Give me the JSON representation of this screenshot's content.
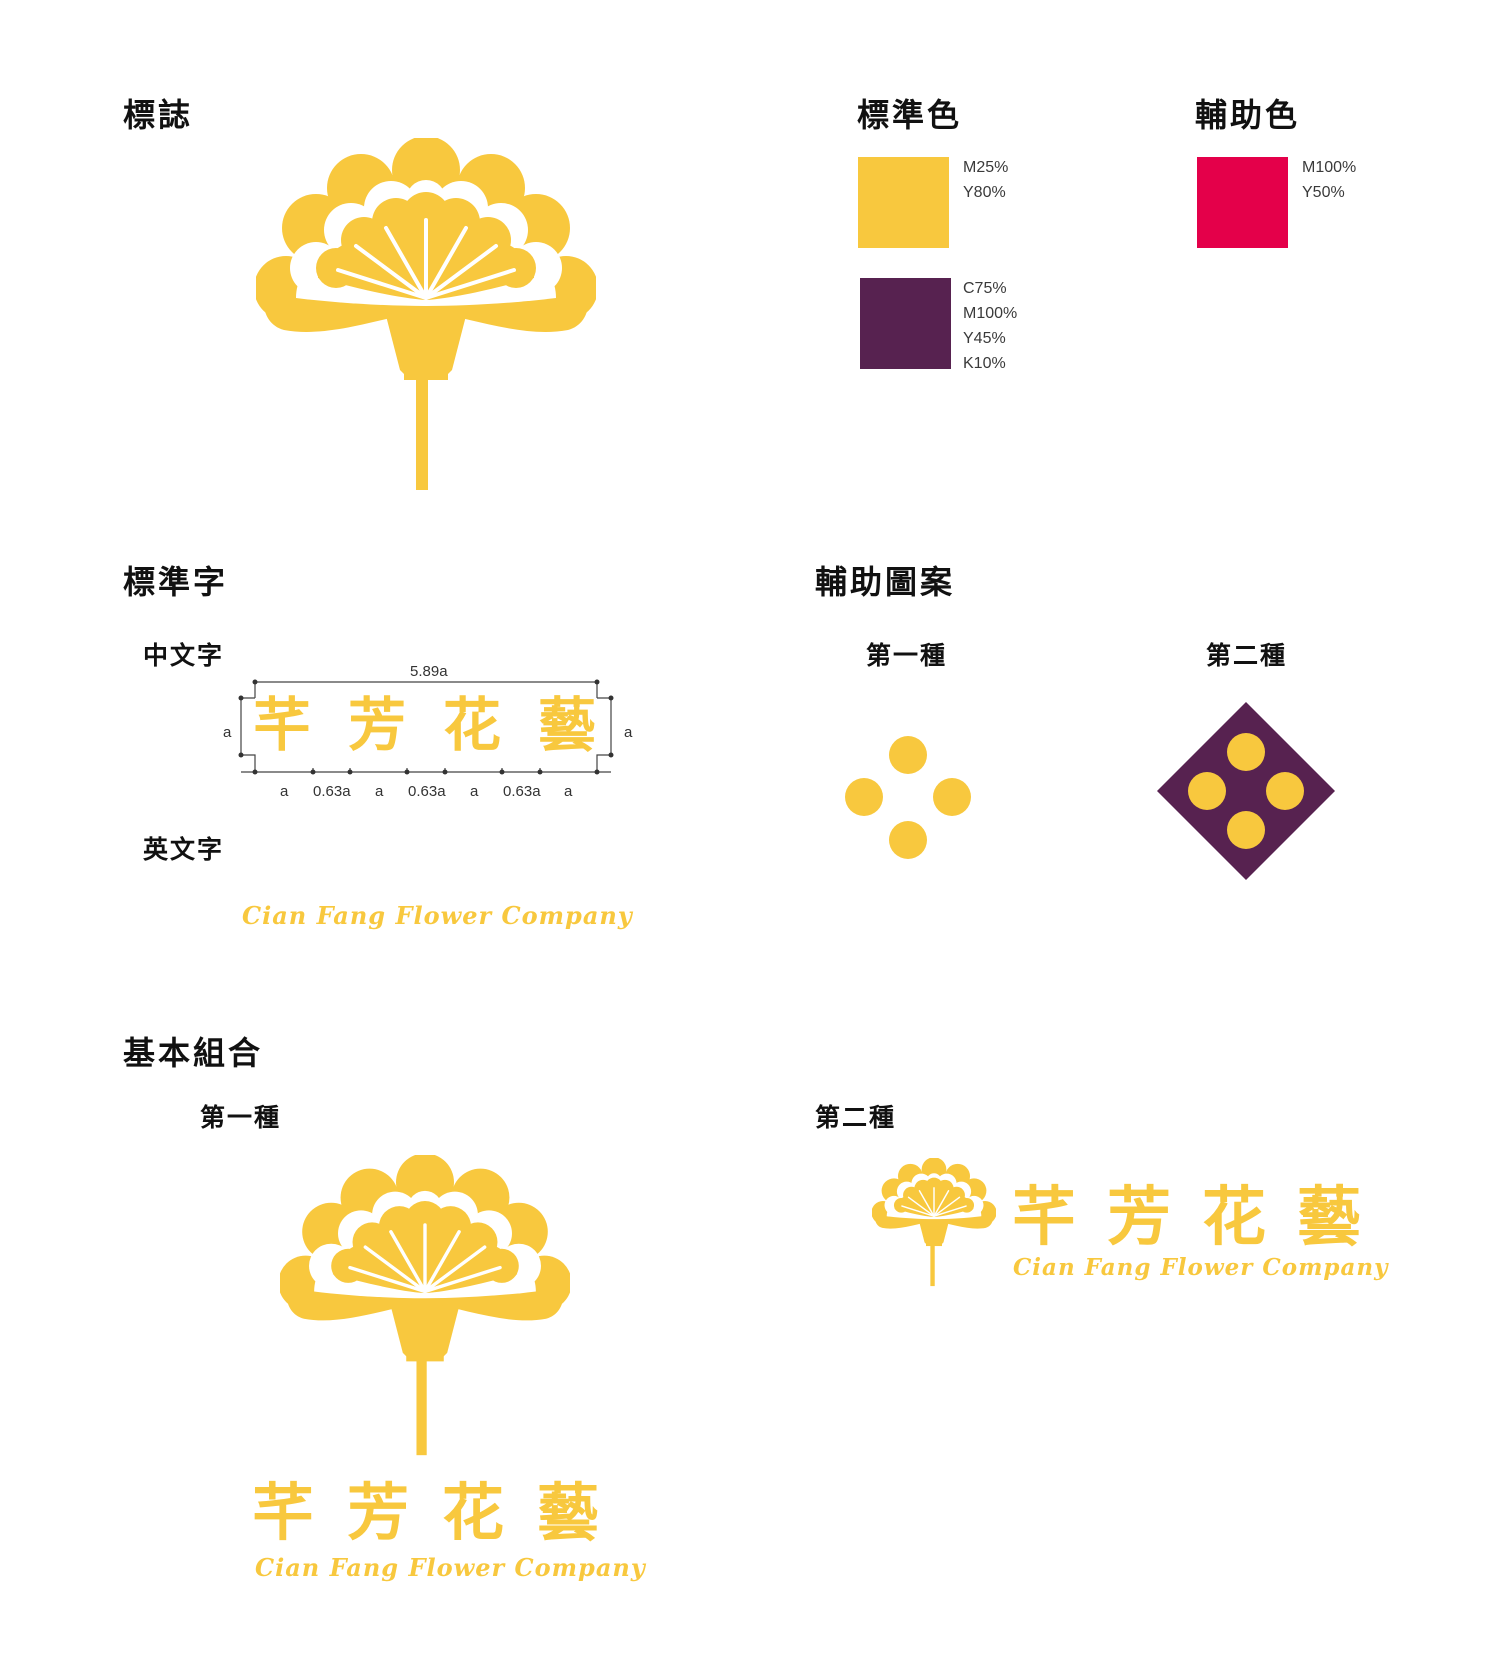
{
  "colors": {
    "primary_yellow": "#F8C83E",
    "primary_purple": "#572250",
    "secondary_red": "#E4004A",
    "background": "#FFFFFF"
  },
  "sections": {
    "logo": {
      "title": "標誌"
    },
    "standard_colors": {
      "title": "標準色",
      "swatches": [
        {
          "lines": [
            "M25%",
            "Y80%"
          ]
        },
        {
          "lines": [
            "C75%",
            "M100%",
            "Y45%",
            "K10%"
          ]
        }
      ]
    },
    "auxiliary_colors": {
      "title": "輔助色",
      "swatches": [
        {
          "lines": [
            "M100%",
            "Y50%"
          ]
        }
      ]
    },
    "standard_type": {
      "title": "標準字",
      "chinese_label": "中文字",
      "english_label": "英文字",
      "chinese_name": "芊芳花藝",
      "chinese_chars": [
        "芊",
        "芳",
        "花",
        "藝"
      ],
      "english_name": "Cian Fang Flower Company",
      "dimensions": {
        "total_width": "5.89a",
        "height_left": "a",
        "height_right": "a",
        "spacing": [
          "a",
          "0.63a",
          "a",
          "0.63a",
          "a",
          "0.63a",
          "a"
        ]
      }
    },
    "auxiliary_pattern": {
      "title": "輔助圖案",
      "variant1": "第一種",
      "variant2": "第二種"
    },
    "basic_combination": {
      "title": "基本組合",
      "variant1": "第一種",
      "variant2": "第二種"
    }
  }
}
